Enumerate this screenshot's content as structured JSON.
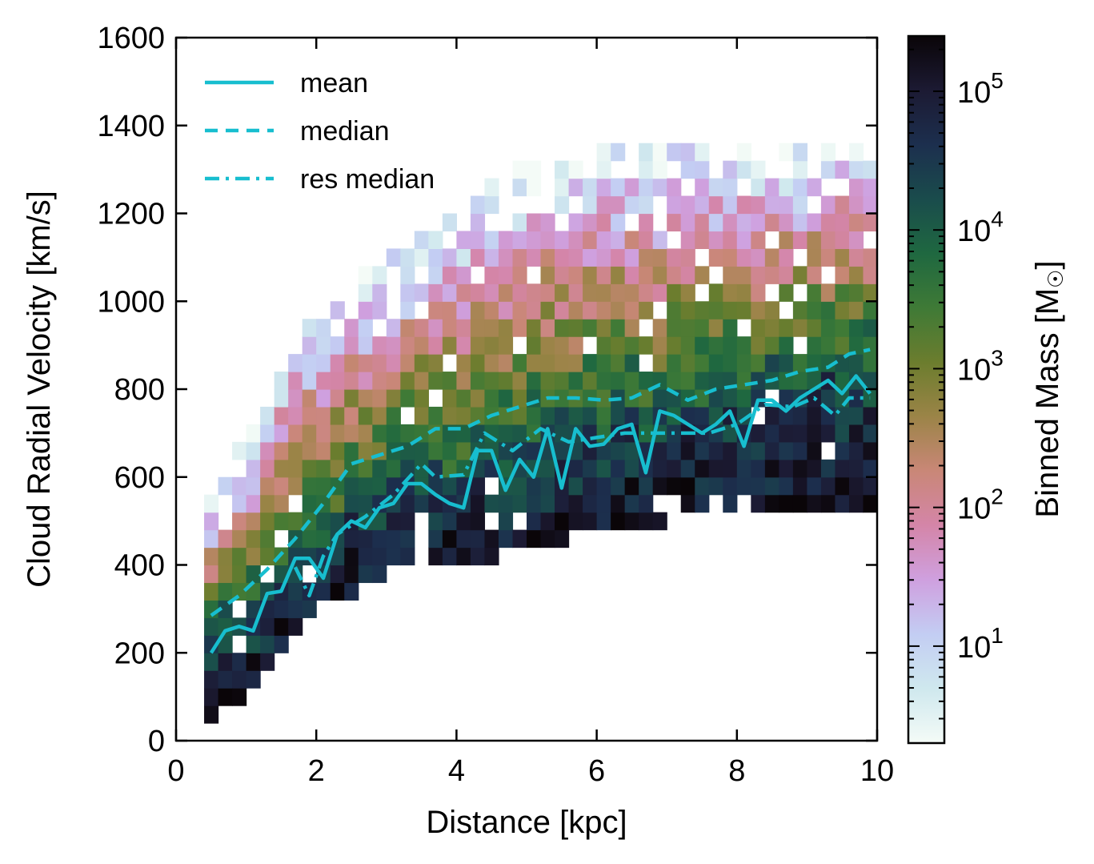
{
  "chart_data": {
    "type": "heatmap",
    "title": "",
    "xlabel": "Distance [kpc]",
    "ylabel": "Cloud Radial Velocity [km/s]",
    "xlim": [
      0,
      10
    ],
    "ylim": [
      0,
      1600
    ],
    "x_ticks": [
      0,
      2,
      4,
      6,
      8,
      10
    ],
    "y_ticks": [
      0,
      200,
      400,
      600,
      800,
      1000,
      1200,
      1400,
      1600
    ],
    "x_tick_labels": [
      "0",
      "2",
      "4",
      "6",
      "8",
      "10"
    ],
    "y_tick_labels": [
      "0",
      "200",
      "400",
      "600",
      "800",
      "1000",
      "1200",
      "1400",
      "1600"
    ],
    "histogram": {
      "bin_width_kpc": 0.2,
      "bin_height_kms": 40,
      "x_range": [
        0.4,
        9.9
      ],
      "y_range_min_by_distance": [
        [
          0.4,
          60
        ],
        [
          1.0,
          140
        ],
        [
          2.0,
          320
        ],
        [
          3.0,
          400
        ],
        [
          4.0,
          420
        ],
        [
          5.0,
          460
        ],
        [
          6.0,
          500
        ],
        [
          8.0,
          540
        ],
        [
          9.9,
          560
        ]
      ],
      "y_range_max_by_distance": [
        [
          0.4,
          540
        ],
        [
          1.0,
          700
        ],
        [
          1.5,
          900
        ],
        [
          2.0,
          1000
        ],
        [
          3.0,
          1100
        ],
        [
          4.0,
          1200
        ],
        [
          5.0,
          1300
        ],
        [
          7.0,
          1350
        ],
        [
          9.9,
          1350
        ]
      ],
      "note": "2D mass-weighted histogram of cloud radial velocity vs. distance"
    },
    "colorbar": {
      "label": "Binned Mass [M☉]",
      "label_prefix": "Binned Mass [M",
      "label_suffix": "]",
      "sun_symbol": "☉",
      "scale": "log",
      "range": [
        2,
        250000
      ],
      "ticks": [
        {
          "base": "10",
          "exp": "1",
          "value": 10
        },
        {
          "base": "10",
          "exp": "2",
          "value": 100
        },
        {
          "base": "10",
          "exp": "3",
          "value": 1000
        },
        {
          "base": "10",
          "exp": "4",
          "value": 10000
        },
        {
          "base": "10",
          "exp": "5",
          "value": 100000
        }
      ],
      "colors": [
        "#f4fbf7",
        "#cfe8ee",
        "#c3cdf3",
        "#cfa0df",
        "#d485a8",
        "#c98777",
        "#9b8447",
        "#6c7d2e",
        "#3f7a36",
        "#1f6840",
        "#1a4c4c",
        "#1c2f4e",
        "#1c1a33",
        "#0a0508"
      ]
    },
    "series": [
      {
        "name": "mean",
        "style": "solid",
        "color": "#17becf",
        "x": [
          0.5,
          0.7,
          0.9,
          1.1,
          1.3,
          1.5,
          1.7,
          1.9,
          2.1,
          2.3,
          2.5,
          2.7,
          2.9,
          3.1,
          3.3,
          3.5,
          3.7,
          3.9,
          4.1,
          4.3,
          4.5,
          4.7,
          4.9,
          5.1,
          5.3,
          5.5,
          5.7,
          5.9,
          6.1,
          6.3,
          6.5,
          6.7,
          6.9,
          7.1,
          7.3,
          7.5,
          7.7,
          7.9,
          8.1,
          8.3,
          8.5,
          8.7,
          8.9,
          9.1,
          9.3,
          9.5,
          9.7,
          9.9
        ],
        "y": [
          200,
          250,
          260,
          250,
          335,
          340,
          415,
          415,
          370,
          470,
          500,
          485,
          530,
          540,
          585,
          585,
          560,
          540,
          530,
          660,
          660,
          570,
          640,
          600,
          710,
          575,
          710,
          670,
          675,
          710,
          720,
          610,
          750,
          740,
          720,
          700,
          720,
          750,
          670,
          775,
          775,
          750,
          780,
          800,
          820,
          790,
          830,
          790
        ]
      },
      {
        "name": "median",
        "style": "dashed",
        "color": "#17becf",
        "x": [
          0.5,
          0.9,
          1.3,
          1.7,
          2.1,
          2.5,
          2.9,
          3.3,
          3.7,
          4.1,
          4.5,
          4.9,
          5.3,
          5.7,
          6.1,
          6.5,
          6.9,
          7.3,
          7.7,
          8.1,
          8.5,
          8.9,
          9.3,
          9.6,
          9.9
        ],
        "y": [
          285,
          330,
          390,
          460,
          540,
          630,
          650,
          670,
          710,
          710,
          740,
          760,
          780,
          780,
          775,
          780,
          810,
          775,
          800,
          810,
          820,
          840,
          850,
          880,
          890
        ]
      },
      {
        "name": "res median",
        "style": "dashdot",
        "color": "#17becf",
        "x": [
          1.7,
          1.9,
          2.1,
          2.3,
          2.7,
          3.1,
          3.5,
          3.7,
          4.1,
          4.4,
          4.8,
          5.2,
          5.6,
          6.0,
          6.4,
          6.8,
          7.2,
          7.6,
          8.0,
          8.4,
          8.8,
          9.1,
          9.4,
          9.6,
          9.9
        ],
        "y": [
          395,
          330,
          420,
          470,
          510,
          560,
          630,
          600,
          605,
          700,
          660,
          710,
          680,
          690,
          700,
          700,
          700,
          700,
          720,
          765,
          760,
          780,
          740,
          780,
          780
        ]
      }
    ],
    "legend": {
      "position": "top-left",
      "entries": [
        "mean",
        "median",
        "res median"
      ]
    }
  }
}
